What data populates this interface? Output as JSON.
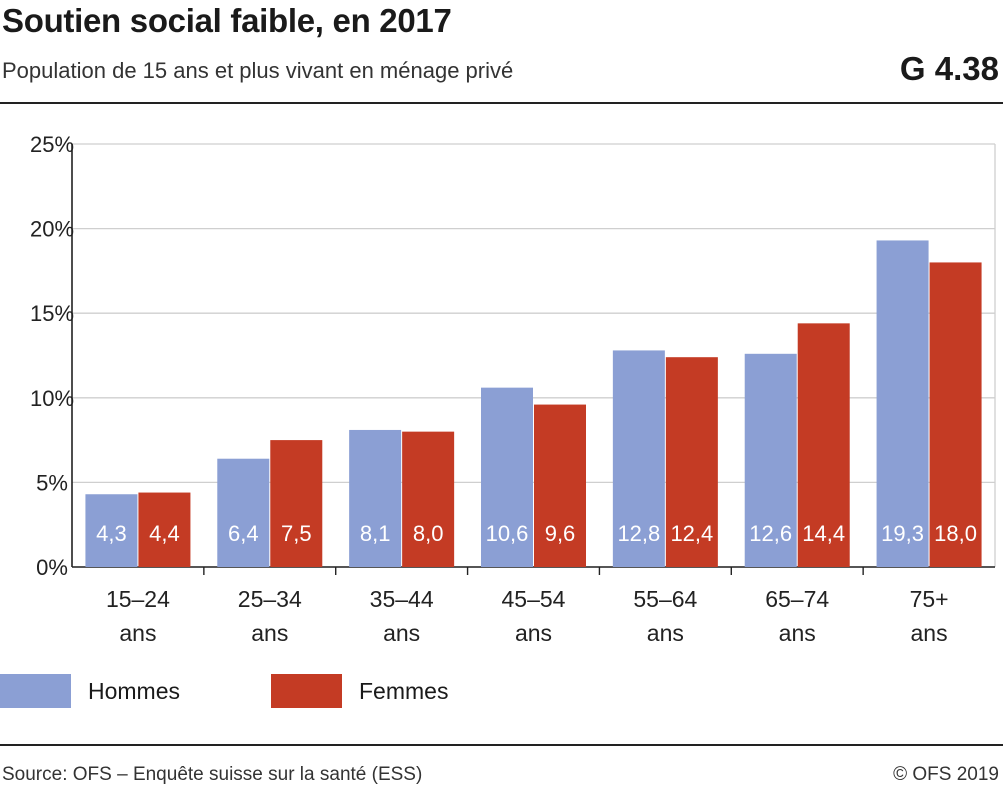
{
  "header": {
    "title": "Soutien social faible, en 2017",
    "subtitle": "Population de 15 ans et plus vivant en ménage privé",
    "code": "G 4.38"
  },
  "footer": {
    "source": "Source: OFS – Enquête suisse sur la santé (ESS)",
    "copyright": "© OFS 2019"
  },
  "colors": {
    "hommes": "#8b9fd4",
    "femmes": "#c43b24"
  },
  "chart_data": {
    "type": "bar",
    "title": "Soutien social faible, en 2017",
    "categories": [
      [
        "15–24",
        "ans"
      ],
      [
        "25–34",
        "ans"
      ],
      [
        "35–44",
        "ans"
      ],
      [
        "45–54",
        "ans"
      ],
      [
        "55–64",
        "ans"
      ],
      [
        "65–74",
        "ans"
      ],
      [
        "75+",
        "ans"
      ]
    ],
    "series": [
      {
        "name": "Hommes",
        "values": [
          4.3,
          6.4,
          8.1,
          10.6,
          12.8,
          12.6,
          19.3
        ],
        "labels": [
          "4,3",
          "6,4",
          "8,1",
          "10,6",
          "12,8",
          "12,6",
          "19,3"
        ]
      },
      {
        "name": "Femmes",
        "values": [
          4.4,
          7.5,
          8.0,
          9.6,
          12.4,
          14.4,
          18.0
        ],
        "labels": [
          "4,4",
          "7,5",
          "8,0",
          "9,6",
          "12,4",
          "14,4",
          "18,0"
        ]
      }
    ],
    "ylim": [
      0,
      25
    ],
    "yticks": [
      0,
      5,
      10,
      15,
      20,
      25
    ],
    "ytick_labels": [
      "0%",
      "5%",
      "10%",
      "15%",
      "20%",
      "25%"
    ],
    "xlabel": "",
    "ylabel": "",
    "grid": true,
    "legend": "bottom-left"
  }
}
